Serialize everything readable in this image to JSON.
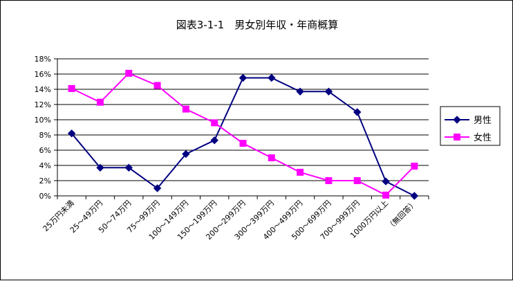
{
  "chart_data": {
    "type": "line",
    "title": "図表3-1-1　男女別年収・年商概算",
    "xlabel": "",
    "ylabel": "",
    "categories": [
      "25万円未満",
      "25～49万円",
      "50～74万円",
      "75～99万円",
      "100～149万円",
      "150～199万円",
      "200～299万円",
      "300～399万円",
      "400～499万円",
      "500～699万円",
      "700～999万円",
      "1000万円以上",
      "（無回答）"
    ],
    "ylim": [
      0,
      18
    ],
    "ytick_step": 2,
    "ytick_labels": [
      "0%",
      "2%",
      "4%",
      "6%",
      "8%",
      "10%",
      "12%",
      "14%",
      "16%",
      "18%"
    ],
    "grid": true,
    "legend_position": "right",
    "series": [
      {
        "name": "男性",
        "color": "#000080",
        "marker": "diamond",
        "values": [
          8.2,
          3.7,
          3.7,
          1.0,
          5.5,
          7.3,
          15.5,
          15.5,
          13.7,
          13.7,
          11.0,
          1.9,
          0.0
        ]
      },
      {
        "name": "女性",
        "color": "#ff00ff",
        "marker": "square",
        "values": [
          14.1,
          12.3,
          16.1,
          14.5,
          11.4,
          9.6,
          6.9,
          5.0,
          3.1,
          2.0,
          2.0,
          0.1,
          3.9
        ]
      }
    ]
  }
}
